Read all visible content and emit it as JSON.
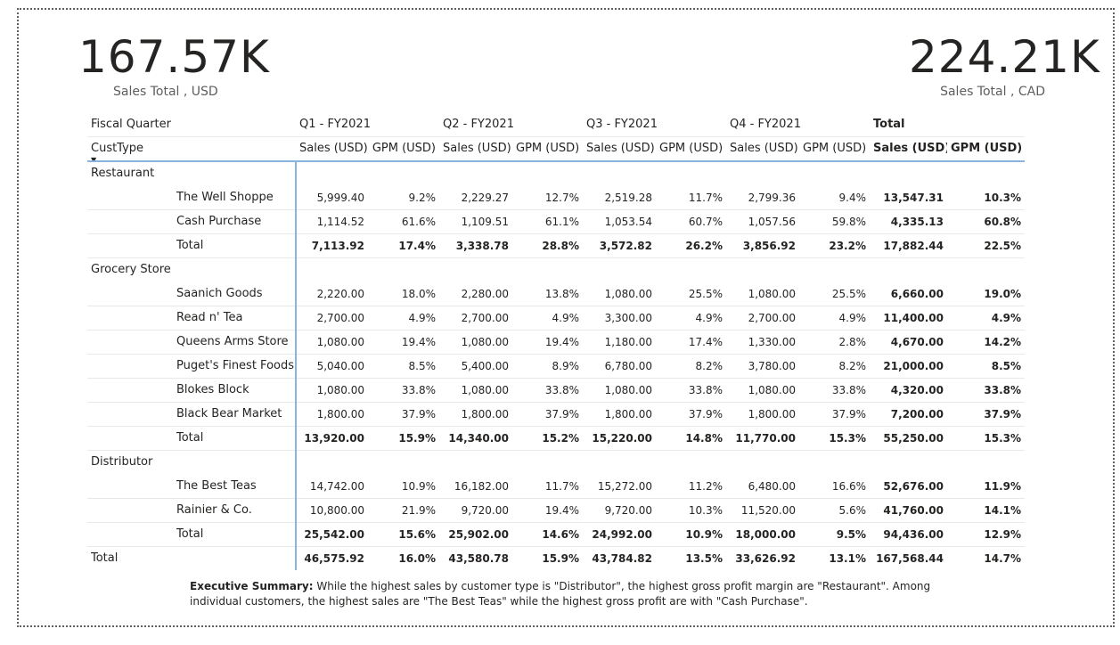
{
  "kpis": {
    "left": {
      "value": "167.57K",
      "label": "Sales Total , USD"
    },
    "right": {
      "value": "224.21K",
      "label": "Sales Total , CAD"
    }
  },
  "matrix": {
    "header_row1": {
      "label": "Fiscal Quarter",
      "quarters": [
        "Q1 - FY2021",
        "Q2 - FY2021",
        "Q3 - FY2021",
        "Q4 - FY2021"
      ],
      "total": "Total"
    },
    "header_row2": {
      "label": "CustType",
      "sort_icon": "sort-down-icon",
      "columns": [
        "Sales (USD)",
        "GPM (USD)",
        "Sales (USD)",
        "GPM (USD)",
        "Sales (USD)",
        "GPM (USD)",
        "Sales (USD)",
        "GPM (USD)",
        "Sales (USD)",
        "GPM (USD)"
      ]
    },
    "rows": [
      {
        "kind": "group",
        "label": "Restaurant",
        "values": []
      },
      {
        "kind": "item",
        "label": "The Well Shoppe",
        "values": [
          "5,999.40",
          "9.2%",
          "2,229.27",
          "12.7%",
          "2,519.28",
          "11.7%",
          "2,799.36",
          "9.4%",
          "13,547.31",
          "10.3%"
        ]
      },
      {
        "kind": "item",
        "label": "Cash Purchase",
        "values": [
          "1,114.52",
          "61.6%",
          "1,109.51",
          "61.1%",
          "1,053.54",
          "60.7%",
          "1,057.56",
          "59.8%",
          "4,335.13",
          "60.8%"
        ]
      },
      {
        "kind": "subtotal",
        "label": "Total",
        "values": [
          "7,113.92",
          "17.4%",
          "3,338.78",
          "28.8%",
          "3,572.82",
          "26.2%",
          "3,856.92",
          "23.2%",
          "17,882.44",
          "22.5%"
        ]
      },
      {
        "kind": "group",
        "label": "Grocery Store",
        "values": []
      },
      {
        "kind": "item",
        "label": "Saanich Goods",
        "values": [
          "2,220.00",
          "18.0%",
          "2,280.00",
          "13.8%",
          "1,080.00",
          "25.5%",
          "1,080.00",
          "25.5%",
          "6,660.00",
          "19.0%"
        ]
      },
      {
        "kind": "item",
        "label": "Read n' Tea",
        "values": [
          "2,700.00",
          "4.9%",
          "2,700.00",
          "4.9%",
          "3,300.00",
          "4.9%",
          "2,700.00",
          "4.9%",
          "11,400.00",
          "4.9%"
        ]
      },
      {
        "kind": "item",
        "label": "Queens Arms Store",
        "values": [
          "1,080.00",
          "19.4%",
          "1,080.00",
          "19.4%",
          "1,180.00",
          "17.4%",
          "1,330.00",
          "2.8%",
          "4,670.00",
          "14.2%"
        ]
      },
      {
        "kind": "item",
        "label": "Puget's Finest Foods",
        "values": [
          "5,040.00",
          "8.5%",
          "5,400.00",
          "8.9%",
          "6,780.00",
          "8.2%",
          "3,780.00",
          "8.2%",
          "21,000.00",
          "8.5%"
        ]
      },
      {
        "kind": "item",
        "label": "Blokes Block",
        "values": [
          "1,080.00",
          "33.8%",
          "1,080.00",
          "33.8%",
          "1,080.00",
          "33.8%",
          "1,080.00",
          "33.8%",
          "4,320.00",
          "33.8%"
        ]
      },
      {
        "kind": "item",
        "label": "Black Bear Market",
        "values": [
          "1,800.00",
          "37.9%",
          "1,800.00",
          "37.9%",
          "1,800.00",
          "37.9%",
          "1,800.00",
          "37.9%",
          "7,200.00",
          "37.9%"
        ]
      },
      {
        "kind": "subtotal",
        "label": "Total",
        "values": [
          "13,920.00",
          "15.9%",
          "14,340.00",
          "15.2%",
          "15,220.00",
          "14.8%",
          "11,770.00",
          "15.3%",
          "55,250.00",
          "15.3%"
        ]
      },
      {
        "kind": "group",
        "label": "Distributor",
        "values": []
      },
      {
        "kind": "item",
        "label": "The Best Teas",
        "values": [
          "14,742.00",
          "10.9%",
          "16,182.00",
          "11.7%",
          "15,272.00",
          "11.2%",
          "6,480.00",
          "16.6%",
          "52,676.00",
          "11.9%"
        ]
      },
      {
        "kind": "item",
        "label": "Rainier & Co.",
        "values": [
          "10,800.00",
          "21.9%",
          "9,720.00",
          "19.4%",
          "9,720.00",
          "10.3%",
          "11,520.00",
          "5.6%",
          "41,760.00",
          "14.1%"
        ]
      },
      {
        "kind": "subtotal",
        "label": "Total",
        "values": [
          "25,542.00",
          "15.6%",
          "25,902.00",
          "14.6%",
          "24,992.00",
          "10.9%",
          "18,000.00",
          "9.5%",
          "94,436.00",
          "12.9%"
        ]
      },
      {
        "kind": "grand",
        "label": "Total",
        "values": [
          "46,575.92",
          "16.0%",
          "43,580.78",
          "15.9%",
          "43,784.82",
          "13.5%",
          "33,626.92",
          "13.1%",
          "167,568.44",
          "14.7%"
        ]
      }
    ]
  },
  "summary": {
    "heading": "Executive Summary:",
    "text": " While the highest sales by customer type is \"Distributor\", the highest gross profit margin are \"Restaurant\". Among individual customers, the highest sales are \"The Best Teas\" while the highest gross profit are with \"Cash Purchase\"."
  }
}
